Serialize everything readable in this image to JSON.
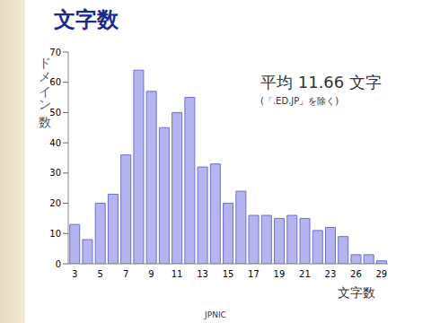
{
  "chart_data": {
    "type": "bar",
    "title": "文字数",
    "xlabel": "文字数",
    "ylabel": "ドメイン数",
    "annotations": [
      "平均 11.66 文字",
      "(「.ED.JP」を除く)"
    ],
    "footer": "JPNIC",
    "categories": [
      "3",
      null,
      "5",
      null,
      "7",
      null,
      "9",
      null,
      "11",
      null,
      "13",
      null,
      "15",
      null,
      "17",
      null,
      "19",
      null,
      "21",
      null,
      "23",
      null,
      "26",
      null,
      "29"
    ],
    "values": [
      13,
      8,
      20,
      23,
      36,
      64,
      57,
      45,
      50,
      55,
      32,
      33,
      20,
      24,
      16,
      16,
      15,
      16,
      15,
      11,
      12,
      9,
      3,
      3,
      1
    ],
    "color": "#b4b4f0",
    "ylim": [
      0,
      70
    ],
    "yticks": [
      0,
      10,
      20,
      30,
      40,
      50,
      60,
      70
    ],
    "grid": false
  }
}
